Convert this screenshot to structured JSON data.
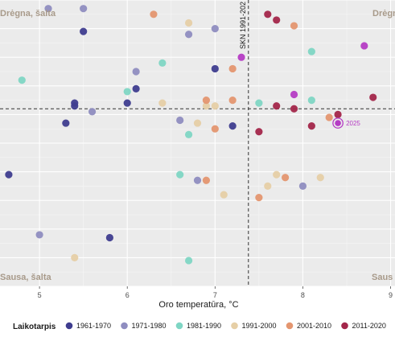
{
  "chart_data": {
    "type": "scatter",
    "title": "",
    "xlabel": "Oro temperatūra, °C",
    "ylabel": "",
    "xlim": [
      4.55,
      9.05
    ],
    "ylim": [
      0,
      1
    ],
    "x_ticks": [
      5,
      6,
      7,
      8,
      9
    ],
    "grid": true,
    "reference_lines": {
      "vertical": {
        "x": 7.38,
        "label": "SKN 1991-202"
      },
      "horizontal": {
        "y": 0.62
      }
    },
    "quadrant_labels": {
      "top_left": "Drėgna, šalta",
      "top_right": "Drėgn",
      "bottom_left": "Sausa, šalta",
      "bottom_right": "Saus"
    },
    "legend": {
      "title": "Laikotarpis",
      "placement": "bottom",
      "entries": [
        {
          "name": "1961-1970",
          "color": "#3f3d8f"
        },
        {
          "name": "1971-1980",
          "color": "#8f8dc0"
        },
        {
          "name": "1981-1990",
          "color": "#7fd6c4"
        },
        {
          "name": "1991-2000",
          "color": "#e6cfa6"
        },
        {
          "name": "2001-2010",
          "color": "#e49670"
        },
        {
          "name": "2011-2020",
          "color": "#a3264a"
        },
        {
          "name": "2021-2",
          "color": "#b53cc4"
        }
      ]
    },
    "highlight": {
      "label": "2025",
      "group": 6,
      "x": 8.4,
      "y": 0.57
    },
    "points": [
      {
        "x": 4.65,
        "y": 0.39,
        "g": 0
      },
      {
        "x": 5.3,
        "y": 0.57,
        "g": 0
      },
      {
        "x": 5.4,
        "y": 0.64,
        "g": 0
      },
      {
        "x": 5.4,
        "y": 0.63,
        "g": 0
      },
      {
        "x": 5.5,
        "y": 0.89,
        "g": 0
      },
      {
        "x": 5.8,
        "y": 0.17,
        "g": 0
      },
      {
        "x": 6.0,
        "y": 0.64,
        "g": 0
      },
      {
        "x": 6.1,
        "y": 0.69,
        "g": 0
      },
      {
        "x": 7.0,
        "y": 0.76,
        "g": 0
      },
      {
        "x": 7.2,
        "y": 0.56,
        "g": 0
      },
      {
        "x": 5.0,
        "y": 0.18,
        "g": 1
      },
      {
        "x": 5.1,
        "y": 0.97,
        "g": 1
      },
      {
        "x": 5.5,
        "y": 0.97,
        "g": 1
      },
      {
        "x": 5.6,
        "y": 0.61,
        "g": 1
      },
      {
        "x": 6.1,
        "y": 0.75,
        "g": 1
      },
      {
        "x": 6.6,
        "y": 0.58,
        "g": 1
      },
      {
        "x": 6.7,
        "y": 0.88,
        "g": 1
      },
      {
        "x": 6.8,
        "y": 0.37,
        "g": 1
      },
      {
        "x": 7.0,
        "y": 0.9,
        "g": 1
      },
      {
        "x": 8.0,
        "y": 0.35,
        "g": 1
      },
      {
        "x": 4.8,
        "y": 0.72,
        "g": 2
      },
      {
        "x": 6.0,
        "y": 0.68,
        "g": 2
      },
      {
        "x": 6.4,
        "y": 0.78,
        "g": 2
      },
      {
        "x": 6.6,
        "y": 0.39,
        "g": 2
      },
      {
        "x": 6.7,
        "y": 0.53,
        "g": 2
      },
      {
        "x": 6.7,
        "y": 0.09,
        "g": 2
      },
      {
        "x": 7.5,
        "y": 0.64,
        "g": 2
      },
      {
        "x": 8.1,
        "y": 0.82,
        "g": 2
      },
      {
        "x": 8.1,
        "y": 0.65,
        "g": 2
      },
      {
        "x": 5.4,
        "y": 0.1,
        "g": 3
      },
      {
        "x": 6.4,
        "y": 0.64,
        "g": 3
      },
      {
        "x": 6.7,
        "y": 0.92,
        "g": 3
      },
      {
        "x": 6.8,
        "y": 0.57,
        "g": 3
      },
      {
        "x": 6.9,
        "y": 0.63,
        "g": 3
      },
      {
        "x": 7.0,
        "y": 0.63,
        "g": 3
      },
      {
        "x": 7.1,
        "y": 0.32,
        "g": 3
      },
      {
        "x": 7.6,
        "y": 0.35,
        "g": 3
      },
      {
        "x": 7.7,
        "y": 0.39,
        "g": 3
      },
      {
        "x": 8.2,
        "y": 0.38,
        "g": 3
      },
      {
        "x": 6.3,
        "y": 0.95,
        "g": 4
      },
      {
        "x": 6.9,
        "y": 0.65,
        "g": 4
      },
      {
        "x": 6.9,
        "y": 0.37,
        "g": 4
      },
      {
        "x": 7.0,
        "y": 0.55,
        "g": 4
      },
      {
        "x": 7.2,
        "y": 0.76,
        "g": 4
      },
      {
        "x": 7.2,
        "y": 0.65,
        "g": 4
      },
      {
        "x": 7.5,
        "y": 0.31,
        "g": 4
      },
      {
        "x": 7.8,
        "y": 0.38,
        "g": 4
      },
      {
        "x": 7.9,
        "y": 0.91,
        "g": 4
      },
      {
        "x": 8.3,
        "y": 0.59,
        "g": 4
      },
      {
        "x": 7.6,
        "y": 0.95,
        "g": 5
      },
      {
        "x": 7.7,
        "y": 0.93,
        "g": 5
      },
      {
        "x": 7.7,
        "y": 0.63,
        "g": 5
      },
      {
        "x": 7.5,
        "y": 0.54,
        "g": 5
      },
      {
        "x": 7.9,
        "y": 0.62,
        "g": 5
      },
      {
        "x": 8.1,
        "y": 0.56,
        "g": 5
      },
      {
        "x": 8.4,
        "y": 0.6,
        "g": 5
      },
      {
        "x": 8.8,
        "y": 0.66,
        "g": 5
      },
      {
        "x": 7.3,
        "y": 0.8,
        "g": 6
      },
      {
        "x": 7.9,
        "y": 0.67,
        "g": 6
      },
      {
        "x": 8.7,
        "y": 0.84,
        "g": 6
      }
    ]
  }
}
